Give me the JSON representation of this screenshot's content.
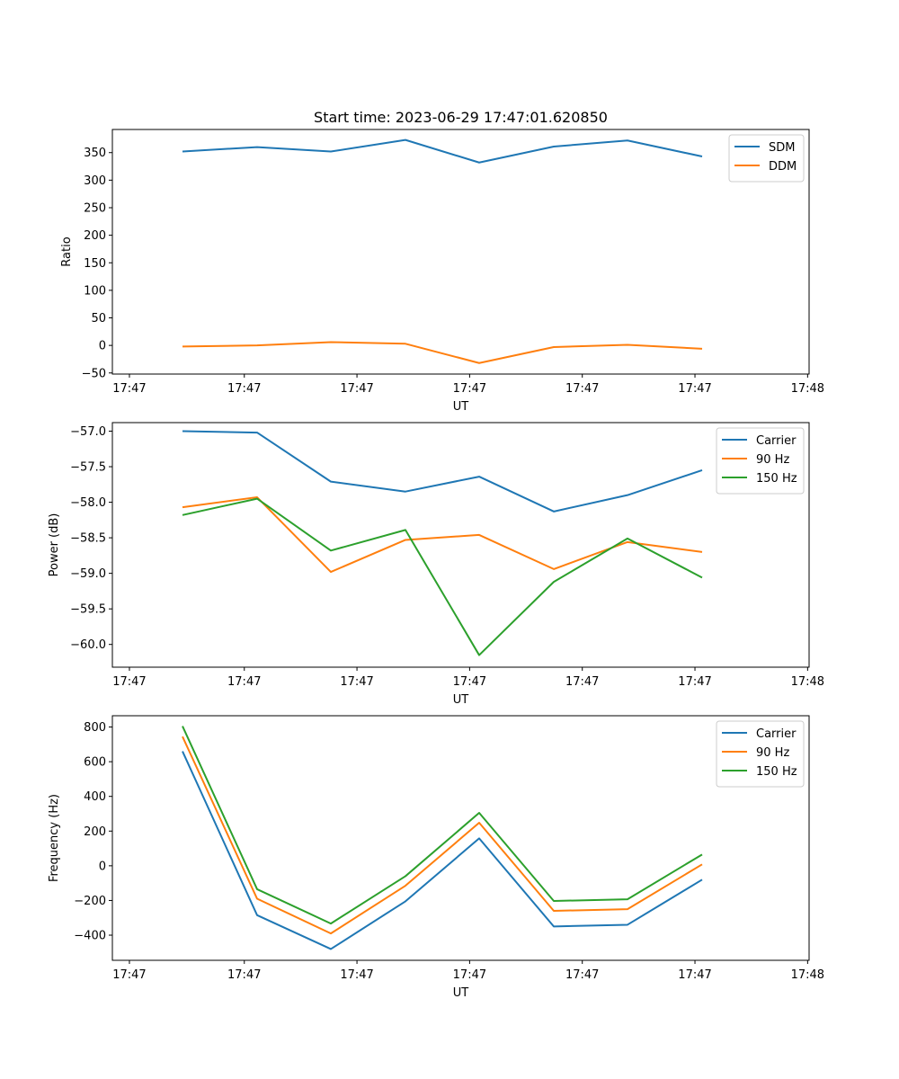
{
  "title": "Start time: 2023-06-29 17:47:01.620850",
  "colors": {
    "series1": "#1f77b4",
    "series2": "#ff7f0e",
    "series3": "#2ca02c"
  },
  "chart_data": [
    {
      "type": "line",
      "xlabel": "UT",
      "ylabel": "Ratio",
      "ylim": [
        -52,
        392
      ],
      "yticks": [
        -50,
        0,
        50,
        100,
        150,
        200,
        250,
        300,
        350
      ],
      "xticklabels": [
        "17:47",
        "17:47",
        "17:47",
        "17:47",
        "17:47",
        "17:47",
        "17:48"
      ],
      "legend_position": "top-right",
      "series": [
        {
          "name": "SDM",
          "color": "#1f77b4",
          "values": [
            352,
            360,
            352,
            373,
            332,
            361,
            372,
            343
          ]
        },
        {
          "name": "DDM",
          "color": "#ff7f0e",
          "values": [
            -2,
            0,
            6,
            3,
            -32,
            -3,
            1,
            -6
          ]
        }
      ]
    },
    {
      "type": "line",
      "xlabel": "UT",
      "ylabel": "Power (dB)",
      "ylim": [
        -60.32,
        -56.88
      ],
      "yticks": [
        -60.0,
        -59.5,
        -59.0,
        -58.5,
        -58.0,
        -57.5,
        -57.0
      ],
      "xticklabels": [
        "17:47",
        "17:47",
        "17:47",
        "17:47",
        "17:47",
        "17:47",
        "17:48"
      ],
      "legend_position": "top-right",
      "series": [
        {
          "name": "Carrier",
          "color": "#1f77b4",
          "values": [
            -57.0,
            -57.02,
            -57.71,
            -57.85,
            -57.64,
            -58.13,
            -57.9,
            -57.55
          ]
        },
        {
          "name": "90 Hz",
          "color": "#ff7f0e",
          "values": [
            -58.07,
            -57.93,
            -58.98,
            -58.53,
            -58.46,
            -58.94,
            -58.56,
            -58.7
          ]
        },
        {
          "name": "150 Hz",
          "color": "#2ca02c",
          "values": [
            -58.18,
            -57.95,
            -58.68,
            -58.39,
            -60.15,
            -59.12,
            -58.51,
            -59.06
          ]
        }
      ]
    },
    {
      "type": "line",
      "xlabel": "UT",
      "ylabel": "Frequency (Hz)",
      "ylim": [
        -545,
        865
      ],
      "yticks": [
        -400,
        -200,
        0,
        200,
        400,
        600,
        800
      ],
      "xticklabels": [
        "17:47",
        "17:47",
        "17:47",
        "17:47",
        "17:47",
        "17:47",
        "17:48"
      ],
      "legend_position": "top-right",
      "series": [
        {
          "name": "Carrier",
          "color": "#1f77b4",
          "values": [
            660,
            -285,
            -480,
            -205,
            158,
            -350,
            -340,
            -80
          ]
        },
        {
          "name": "90 Hz",
          "color": "#ff7f0e",
          "values": [
            745,
            -190,
            -390,
            -115,
            248,
            -260,
            -250,
            8
          ]
        },
        {
          "name": "150 Hz",
          "color": "#2ca02c",
          "values": [
            805,
            -135,
            -333,
            -60,
            305,
            -203,
            -193,
            65
          ]
        }
      ]
    }
  ]
}
